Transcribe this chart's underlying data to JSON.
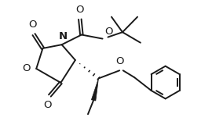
{
  "bg_color": "#ffffff",
  "line_color": "#1a1a1a",
  "line_width": 1.4,
  "figsize": [
    2.84,
    1.78
  ],
  "dpi": 100,
  "xlim": [
    0,
    10
  ],
  "ylim": [
    0,
    7
  ]
}
